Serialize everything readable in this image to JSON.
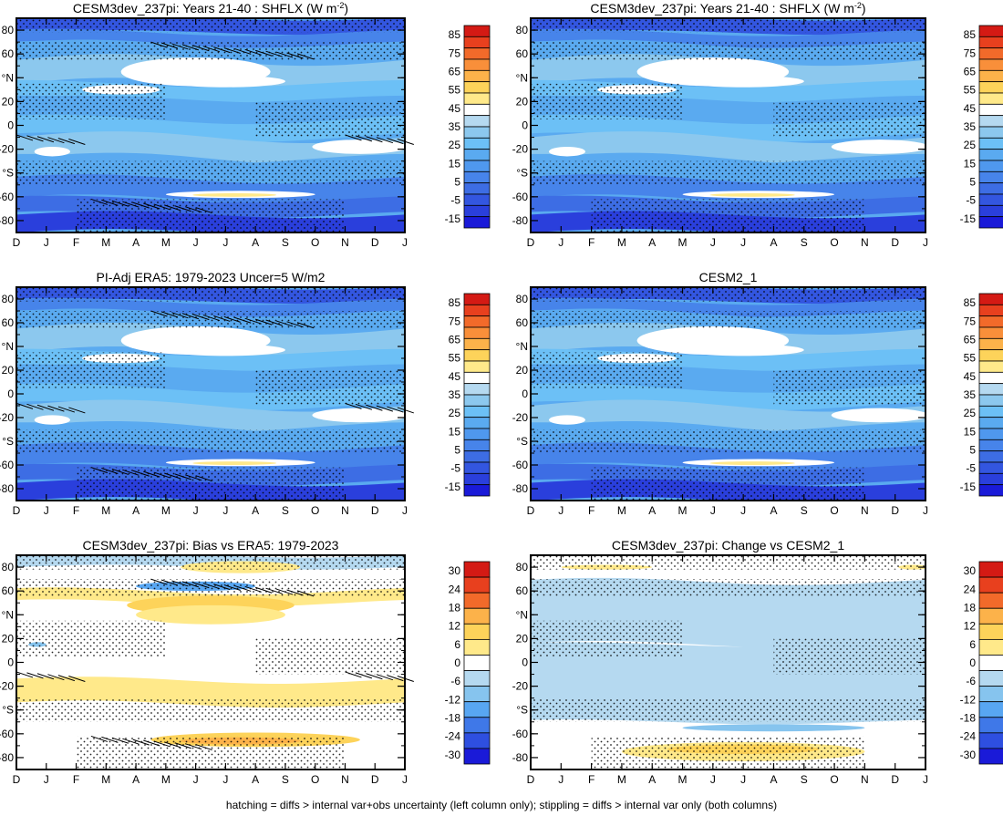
{
  "footnote": "hatching = diffs > internal var+obs uncertainty (left column only); stippling = diffs > internal var only (both columns)",
  "colors": {
    "field_scale": [
      "#1a1ad8",
      "#2a3fdc",
      "#3356e0",
      "#3d6de4",
      "#4784ea",
      "#4f98ee",
      "#5aaaf0",
      "#6cc0f6",
      "#8cc8ee",
      "#b5d9f0",
      "#ffffff",
      "#ffe98a",
      "#fdd35a",
      "#fcb24a",
      "#f98f3a",
      "#f26a2a",
      "#e8401e",
      "#d41a14"
    ],
    "diff_scale": [
      "#1a1ad8",
      "#2e4fe0",
      "#3f78e8",
      "#58a6f2",
      "#86c4ee",
      "#b5d9f0",
      "#ffffff",
      "#ffe98a",
      "#fdd35a",
      "#fcb24a",
      "#f26a2a",
      "#e8401e",
      "#d41a14"
    ],
    "frame": "#000000"
  },
  "chart_data": [
    {
      "type": "heatmap",
      "title": "CESM3dev_237pi: Years 21-40 : SHFLX (W m",
      "title_sup": "-2",
      "title_end": ")",
      "x": [
        "D",
        "J",
        "F",
        "M",
        "A",
        "M",
        "J",
        "J",
        "A",
        "S",
        "O",
        "N",
        "D",
        "J"
      ],
      "y_ticks": [
        "80",
        "60",
        "°N",
        "20",
        "0",
        "-20",
        "°S",
        "-60",
        "-80"
      ],
      "ylim": [
        -90,
        90
      ],
      "colorbar": {
        "labels": [
          "85",
          "75",
          "65",
          "55",
          "45",
          "35",
          "25",
          "15",
          "5",
          "-5",
          "-15"
        ],
        "levels": [
          -20,
          -15,
          -10,
          -5,
          0,
          5,
          10,
          15,
          20,
          25,
          30,
          35,
          40,
          45,
          55,
          65,
          75,
          85,
          95
        ]
      },
      "kind": "field",
      "hatching": true,
      "stippling": true
    },
    {
      "type": "heatmap",
      "title": "CESM3dev_237pi: Years 21-40 : SHFLX (W m",
      "title_sup": "-2",
      "title_end": ")",
      "x": [
        "D",
        "J",
        "F",
        "M",
        "A",
        "M",
        "J",
        "J",
        "A",
        "S",
        "O",
        "N",
        "D",
        "J"
      ],
      "y_ticks": [
        "80",
        "60",
        "°N",
        "20",
        "0",
        "-20",
        "°S",
        "-60",
        "-80"
      ],
      "ylim": [
        -90,
        90
      ],
      "colorbar": {
        "labels": [
          "85",
          "75",
          "65",
          "55",
          "45",
          "35",
          "25",
          "15",
          "5",
          "-5",
          "-15"
        ]
      },
      "kind": "field",
      "hatching": false,
      "stippling": true
    },
    {
      "type": "heatmap",
      "title": "PI-Adj ERA5: 1979-2023 Uncer=5 W/m2",
      "x": [
        "D",
        "J",
        "F",
        "M",
        "A",
        "M",
        "J",
        "J",
        "A",
        "S",
        "O",
        "N",
        "D",
        "J"
      ],
      "y_ticks": [
        "80",
        "60",
        "°N",
        "20",
        "0",
        "-20",
        "°S",
        "-60",
        "-80"
      ],
      "ylim": [
        -90,
        90
      ],
      "colorbar": {
        "labels": [
          "85",
          "75",
          "65",
          "55",
          "45",
          "35",
          "25",
          "15",
          "5",
          "-5",
          "-15"
        ]
      },
      "kind": "field",
      "hatching": true,
      "stippling": true
    },
    {
      "type": "heatmap",
      "title": "CESM2_1",
      "x": [
        "D",
        "J",
        "F",
        "M",
        "A",
        "M",
        "J",
        "J",
        "A",
        "S",
        "O",
        "N",
        "D",
        "J"
      ],
      "y_ticks": [
        "80",
        "60",
        "°N",
        "20",
        "0",
        "-20",
        "°S",
        "-60",
        "-80"
      ],
      "ylim": [
        -90,
        90
      ],
      "colorbar": {
        "labels": [
          "85",
          "75",
          "65",
          "55",
          "45",
          "35",
          "25",
          "15",
          "5",
          "-5",
          "-15"
        ]
      },
      "kind": "field",
      "hatching": false,
      "stippling": true
    },
    {
      "type": "heatmap",
      "title": "CESM3dev_237pi: Bias vs ERA5: 1979-2023",
      "x": [
        "D",
        "J",
        "F",
        "M",
        "A",
        "M",
        "J",
        "J",
        "A",
        "S",
        "O",
        "N",
        "D",
        "J"
      ],
      "y_ticks": [
        "80",
        "60",
        "°N",
        "20",
        "0",
        "-20",
        "°S",
        "-60",
        "-80"
      ],
      "ylim": [
        -90,
        90
      ],
      "colorbar": {
        "labels": [
          "30",
          "24",
          "18",
          "12",
          "6",
          "0",
          "-6",
          "-12",
          "-18",
          "-24",
          "-30"
        ]
      },
      "kind": "bias",
      "hatching": true,
      "stippling": true
    },
    {
      "type": "heatmap",
      "title": "CESM3dev_237pi: Change vs CESM2_1",
      "x": [
        "D",
        "J",
        "F",
        "M",
        "A",
        "M",
        "J",
        "J",
        "A",
        "S",
        "O",
        "N",
        "D",
        "J"
      ],
      "y_ticks": [
        "80",
        "60",
        "°N",
        "20",
        "0",
        "-20",
        "°S",
        "-60",
        "-80"
      ],
      "ylim": [
        -90,
        90
      ],
      "colorbar": {
        "labels": [
          "30",
          "24",
          "18",
          "12",
          "6",
          "0",
          "-6",
          "-12",
          "-18",
          "-24",
          "-30"
        ]
      },
      "kind": "change",
      "hatching": false,
      "stippling": true
    }
  ]
}
